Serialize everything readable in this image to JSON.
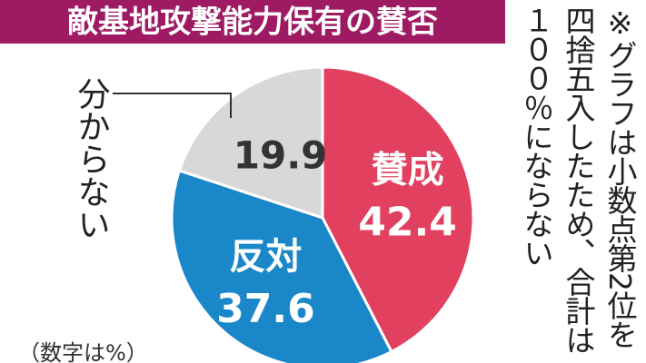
{
  "chart_data": {
    "type": "pie",
    "title": "敵基地攻撃能力保有の賛否",
    "categories": [
      "賛成",
      "反対",
      "分からない"
    ],
    "values": [
      42.4,
      37.6,
      19.9
    ],
    "colors": [
      "#e2405f",
      "#1a87c9",
      "#d8d8d8"
    ],
    "label_colors": [
      "#ffffff",
      "#ffffff",
      "#333333"
    ],
    "note": [
      "※グラフは小数点第2位を",
      "四捨五入したため、合計は",
      "１００％にならない"
    ],
    "unit_note": "（数字は%）"
  }
}
